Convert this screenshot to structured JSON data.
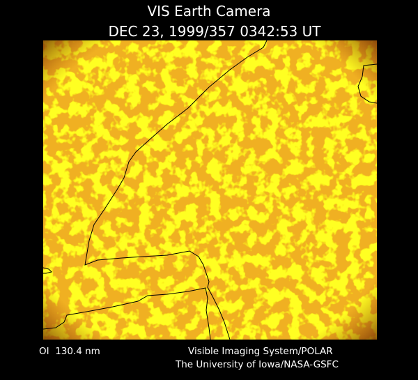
{
  "header": {
    "title": "VIS Earth Camera",
    "timestamp": "DEC 23, 1999/357 0342:53 UT"
  },
  "footer": {
    "band": "OI  130.4 nm",
    "instrument": "Visible Imaging System/POLAR",
    "credit": "The University of Iowa/NASA-GSFC"
  }
}
